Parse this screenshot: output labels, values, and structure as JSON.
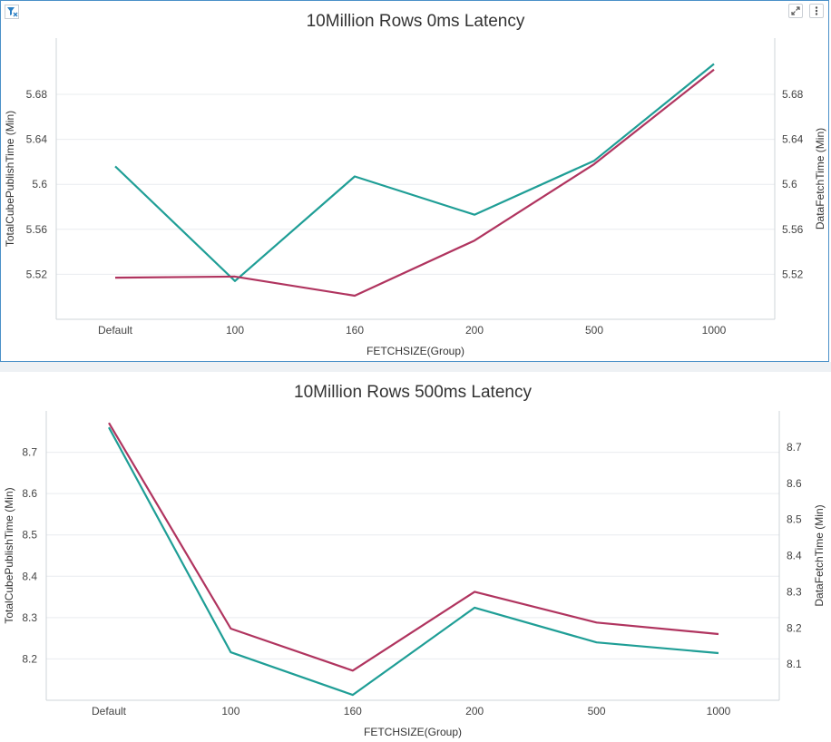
{
  "colors": {
    "series_teal": "#1f9e96",
    "series_crimson": "#b0345f",
    "grid": "#e9ecef",
    "axis": "#cfd4d9",
    "panel_border": "#4a90c8"
  },
  "toolbar": {
    "filter_icon": "filter-clear-icon",
    "expand_icon": "expand-icon",
    "more_icon": "more-vertical-icon"
  },
  "chart_data": [
    {
      "type": "line",
      "title": "10Million Rows 0ms Latency",
      "xlabel": "FETCHSIZE(Group)",
      "ylabel_left": "TotalCubePublishTime (Min)",
      "ylabel_right": "DataFetchTime (Min)",
      "categories": [
        "Default",
        "100",
        "160",
        "200",
        "500",
        "1000"
      ],
      "y_left": {
        "ticks": [
          5.52,
          5.56,
          5.6,
          5.64,
          5.68
        ],
        "tick_labels": [
          "5.52",
          "5.56",
          "5.6",
          "5.64",
          "5.68"
        ],
        "range": [
          5.48,
          5.73
        ]
      },
      "y_right": {
        "ticks": [
          5.52,
          5.56,
          5.6,
          5.64,
          5.68
        ],
        "tick_labels": [
          "5.52",
          "5.56",
          "5.6",
          "5.64",
          "5.68"
        ],
        "range": [
          5.48,
          5.73
        ]
      },
      "grid": true,
      "series": [
        {
          "axis": "left",
          "color": "#1f9e96",
          "values": [
            5.616,
            5.514,
            5.607,
            5.573,
            5.621,
            5.707
          ]
        },
        {
          "axis": "right",
          "color": "#b0345f",
          "values": [
            5.517,
            5.518,
            5.501,
            5.55,
            5.618,
            5.702
          ]
        }
      ]
    },
    {
      "type": "line",
      "title": "10Million Rows 500ms Latency",
      "xlabel": "FETCHSIZE(Group)",
      "ylabel_left": "TotalCubePublishTime (Min)",
      "ylabel_right": "DataFetchTime (Min)",
      "categories": [
        "Default",
        "100",
        "160",
        "200",
        "500",
        "1000"
      ],
      "y_left": {
        "ticks": [
          8.2,
          8.3,
          8.4,
          8.5,
          8.6,
          8.7
        ],
        "tick_labels": [
          "8.2",
          "8.3",
          "8.4",
          "8.5",
          "8.6",
          "8.7"
        ],
        "range": [
          8.1,
          8.8
        ]
      },
      "y_right": {
        "ticks": [
          8.1,
          8.2,
          8.3,
          8.4,
          8.5,
          8.6,
          8.7
        ],
        "tick_labels": [
          "8.1",
          "8.2",
          "8.3",
          "8.4",
          "8.5",
          "8.6",
          "8.7"
        ],
        "range": [
          8.0,
          8.8
        ]
      },
      "grid": true,
      "series": [
        {
          "axis": "left",
          "color": "#1f9e96",
          "values": [
            8.76,
            8.216,
            8.113,
            8.324,
            8.24,
            8.214
          ]
        },
        {
          "axis": "right",
          "color": "#b0345f",
          "values": [
            8.767,
            8.198,
            8.082,
            8.3,
            8.215,
            8.183
          ]
        }
      ]
    }
  ]
}
